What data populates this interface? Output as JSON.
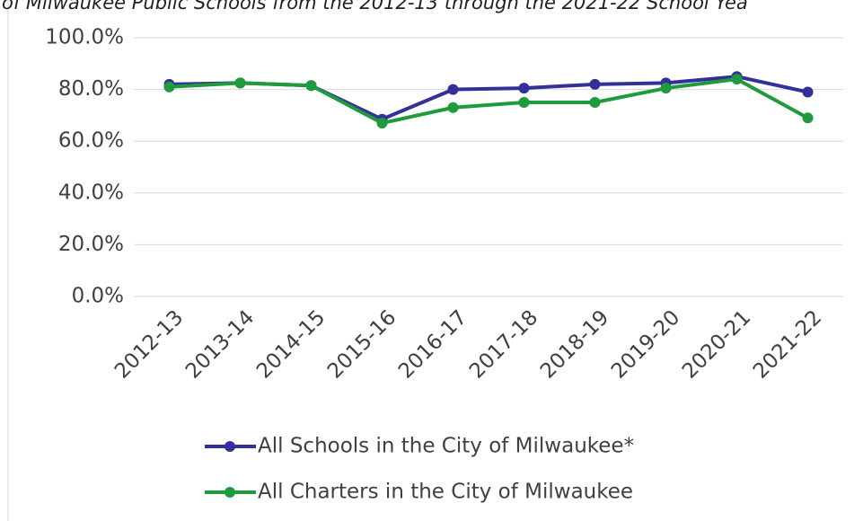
{
  "chart_data": {
    "type": "line",
    "title": "of Milwaukee Public Schools from the 2012-13 through the 2021-22 School Yea",
    "categories": [
      "2012-13",
      "2013-14",
      "2014-15",
      "2015-16",
      "2016-17",
      "2017-18",
      "2018-19",
      "2019-20",
      "2020-21",
      "2021-22"
    ],
    "series": [
      {
        "name": "All Schools in the City of Milwaukee*",
        "color": "#33309a",
        "values": [
          82,
          82.5,
          81.5,
          68.5,
          80,
          80.5,
          82,
          82.5,
          85,
          79
        ]
      },
      {
        "name": "All Charters in the City of Milwaukee",
        "color": "#1f9a3c",
        "values": [
          81,
          82.5,
          81.5,
          67,
          73,
          75,
          75,
          80.5,
          84,
          69
        ]
      }
    ],
    "ylim": [
      0,
      100
    ],
    "yticks": [
      {
        "value": 0,
        "label": "0.0%"
      },
      {
        "value": 20,
        "label": "20.0%"
      },
      {
        "value": 40,
        "label": "40.0%"
      },
      {
        "value": 60,
        "label": "60.0%"
      },
      {
        "value": 80,
        "label": "80.0%"
      },
      {
        "value": 100,
        "label": "100.0%"
      }
    ],
    "grid": true,
    "legend": "bottom"
  }
}
